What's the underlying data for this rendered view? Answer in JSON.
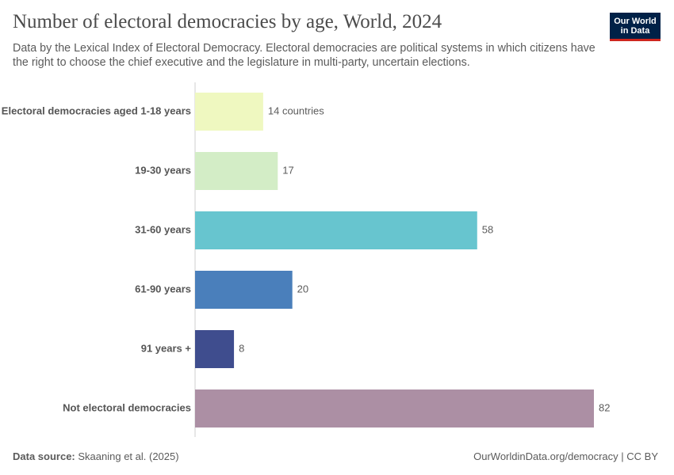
{
  "header": {
    "title": "Number of electoral democracies by age, World, 2024",
    "subtitle": "Data by the Lexical Index of Electoral Democracy. Electoral democracies are political systems in which citizens have the right to choose the chief executive and the legislature in multi-party, uncertain elections.",
    "logo": [
      "Our World",
      "in Data"
    ]
  },
  "chart_data": {
    "type": "bar",
    "orientation": "horizontal",
    "categories": [
      "Electoral democracies aged 1-18 years",
      "19-30 years",
      "31-60 years",
      "61-90 years",
      "91 years +",
      "Not electoral democracies"
    ],
    "values": [
      14,
      17,
      58,
      20,
      8,
      82
    ],
    "value_labels": [
      "14 countries",
      "17",
      "58",
      "20",
      "8",
      "82"
    ],
    "colors": [
      "#eff8c0",
      "#d3edc6",
      "#67c5cf",
      "#4a7fbb",
      "#3f4d8e",
      "#ac8fa4"
    ]
  },
  "footer": {
    "source_label": "Data source:",
    "source": "Skaaning et al. (2025)",
    "url": "OurWorldinData.org/democracy | CC BY"
  }
}
